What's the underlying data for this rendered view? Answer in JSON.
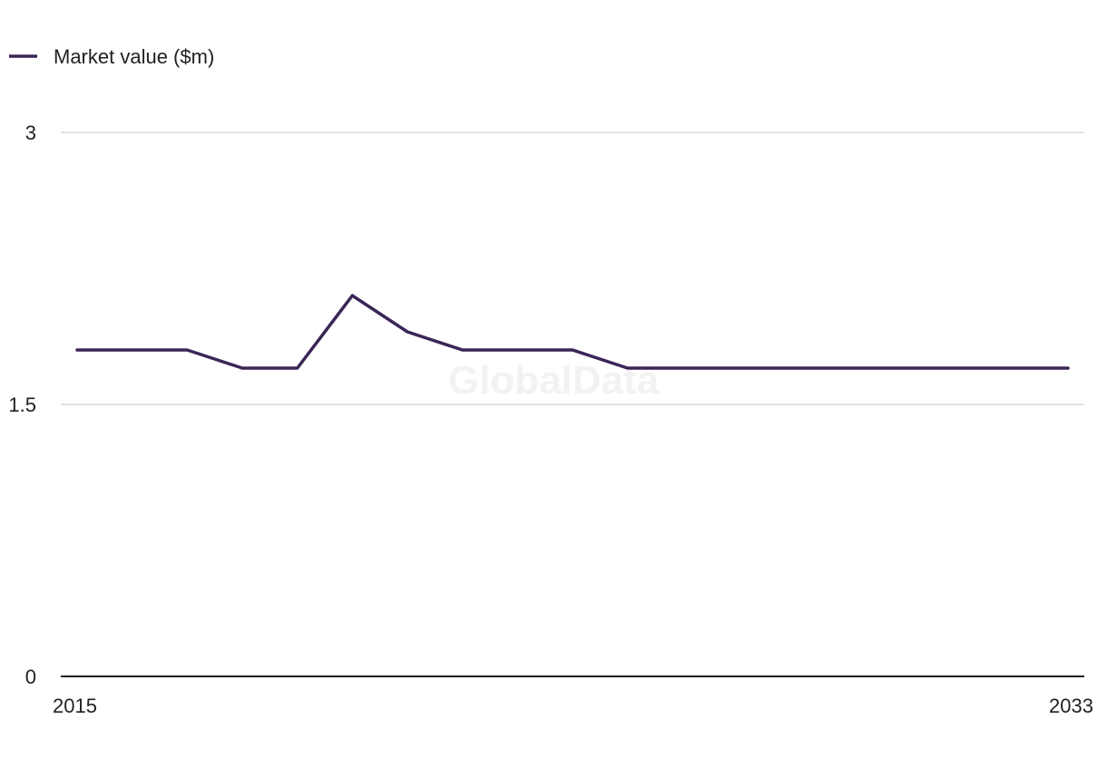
{
  "chart_data": {
    "type": "line",
    "x": [
      "2015",
      "2016",
      "2017",
      "2018",
      "2019",
      "2020",
      "2021",
      "2022",
      "2023",
      "2024",
      "2025",
      "2026",
      "2027",
      "2028",
      "2029",
      "2030",
      "2031",
      "2032",
      "2033"
    ],
    "series": [
      {
        "name": "Market value ($m)",
        "color": "#3b2557",
        "values": [
          1.8,
          1.8,
          1.8,
          1.7,
          1.7,
          2.1,
          1.9,
          1.8,
          1.8,
          1.8,
          1.7,
          1.7,
          1.7,
          1.7,
          1.7,
          1.7,
          1.7,
          1.7,
          1.7
        ]
      }
    ],
    "ylim": [
      0,
      3
    ],
    "yticks": [
      "0",
      "1.5",
      "3"
    ],
    "xtick_labels": [
      "2015",
      "2033"
    ],
    "grid": true,
    "legend": "top-left",
    "watermark": "GlobalData"
  }
}
